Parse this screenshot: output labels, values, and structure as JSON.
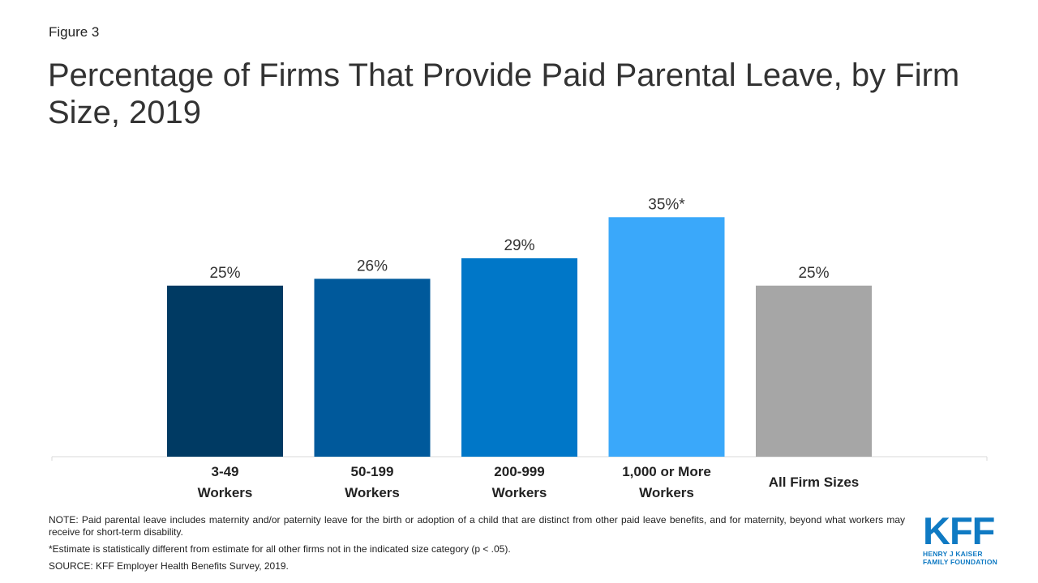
{
  "figure_label": "Figure 3",
  "title": "Percentage of Firms That Provide Paid Parental Leave, by Firm Size, 2019",
  "chart_data": {
    "type": "bar",
    "categories": [
      [
        "3-49",
        "Workers"
      ],
      [
        "50-199",
        "Workers"
      ],
      [
        "200-999",
        "Workers"
      ],
      [
        "1,000 or More",
        "Workers"
      ],
      [
        "All Firm Sizes"
      ]
    ],
    "values": [
      25,
      26,
      29,
      35,
      25
    ],
    "data_labels": [
      "25%",
      "26%",
      "29%",
      "35%*",
      "25%"
    ],
    "colors": [
      "#003a63",
      "#00599b",
      "#0077c8",
      "#3aa8fa",
      "#a6a6a6"
    ],
    "ylim": [
      0,
      40
    ],
    "grid": false,
    "legend": "none"
  },
  "notes": {
    "note": "NOTE: Paid parental leave includes maternity and/or paternity leave for the birth or adoption of a child that are distinct from other paid leave  benefits, and for maternity, beyond what workers may receive for short-term disability.",
    "significance": "*Estimate is statistically different from estimate for all other firms not in the indicated size category (p < .05).",
    "source": "SOURCE: KFF Employer Health Benefits Survey, 2019."
  },
  "logo": {
    "letters": "KFF",
    "line1": "HENRY J KAISER",
    "line2": "FAMILY FOUNDATION"
  }
}
